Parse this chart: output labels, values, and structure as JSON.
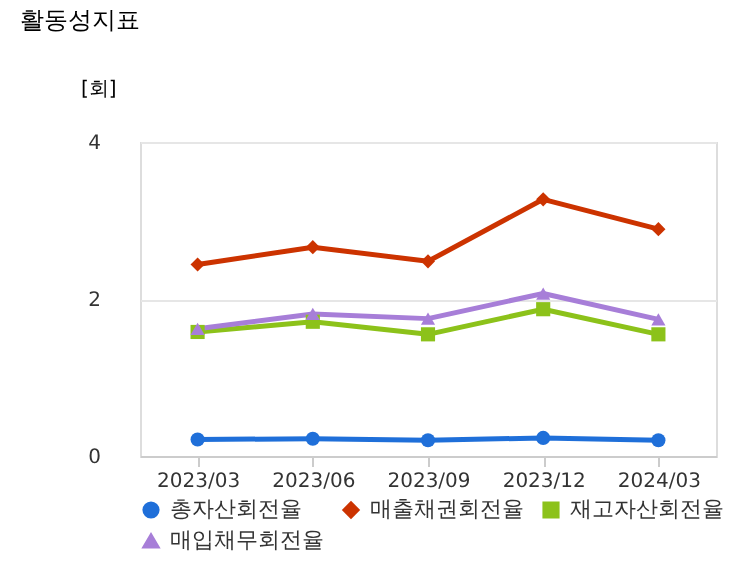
{
  "chart_data": {
    "type": "line",
    "title": "활동성지표",
    "ylabel": "[회]",
    "categories": [
      "2023/03",
      "2023/06",
      "2023/09",
      "2023/12",
      "2024/03"
    ],
    "series": [
      {
        "name": "총자산회전율",
        "color": "#1f6fd9",
        "marker": "circle",
        "values": [
          0.21,
          0.22,
          0.2,
          0.23,
          0.2
        ]
      },
      {
        "name": "매출채권회전율",
        "color": "#cc3300",
        "marker": "diamond",
        "values": [
          2.44,
          2.66,
          2.48,
          3.27,
          2.89
        ]
      },
      {
        "name": "재고자산회전율",
        "color": "#8cc21a",
        "marker": "square",
        "values": [
          1.58,
          1.71,
          1.55,
          1.87,
          1.55
        ]
      },
      {
        "name": "매입채무회전율",
        "color": "#a77ed8",
        "marker": "triangle",
        "values": [
          1.62,
          1.81,
          1.75,
          2.07,
          1.74
        ]
      }
    ],
    "ylim": [
      0,
      4
    ],
    "yticks": [
      0,
      2,
      4
    ],
    "grid": "y",
    "legend": "bottom",
    "line_style": "solid"
  }
}
